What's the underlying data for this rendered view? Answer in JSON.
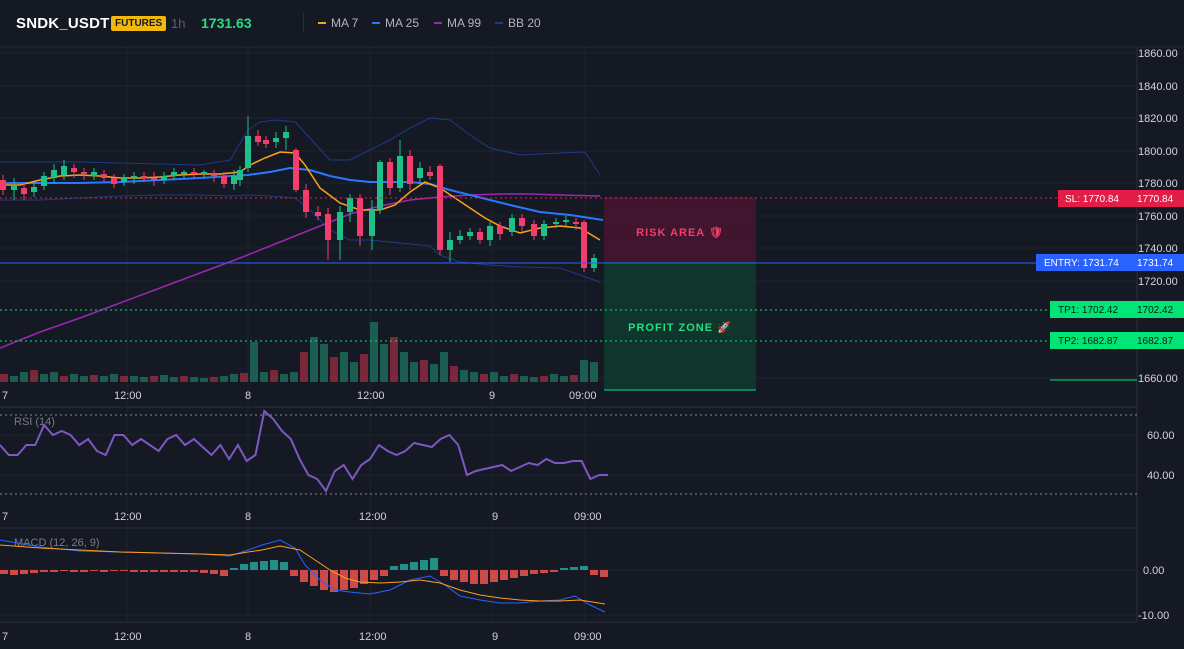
{
  "header": {
    "symbol": "SNDK_USDT",
    "badge": "FUTURES",
    "timeframe": "1h",
    "last_price": "1731.63",
    "legend": [
      {
        "label": "MA 7",
        "color": "#ff9f1a"
      },
      {
        "label": "MA 25",
        "color": "#2979ff"
      },
      {
        "label": "MA 99",
        "color": "#9c27b0"
      },
      {
        "label": "BB 20",
        "color": "#1e3a8a"
      }
    ]
  },
  "colors": {
    "up": "#1fbf8a",
    "down": "#f23d6d",
    "grid": "#1f2330",
    "axis_text": "#d1d4dc",
    "sl": "#e11d48",
    "entry": "#2962ff",
    "tp": "#00e676",
    "risk_fill": "#4a1530",
    "profit_fill": "#0e3b2e",
    "rsi": "#7e57c2",
    "macd": "#2962ff",
    "signal": "#ff9f1a"
  },
  "price_axis": {
    "ticks": [
      "1860.00",
      "1840.00",
      "1820.00",
      "1800.00",
      "1780.00",
      "1760.00",
      "1740.00",
      "1720.00",
      "1660.00"
    ],
    "range": [
      1655,
      1865
    ]
  },
  "time_axis": {
    "ticks": [
      "7",
      "12:00",
      "8",
      "12:00",
      "9",
      "09:00"
    ]
  },
  "levels": {
    "sl": {
      "label": "SL: 1770.84",
      "value": "1770.84",
      "price": 1770.84
    },
    "entry": {
      "label": "ENTRY: 1731.74",
      "value": "1731.74",
      "price": 1731.74
    },
    "tp1": {
      "label": "TP1: 1702.42",
      "value": "1702.42",
      "price": 1702.42
    },
    "tp2": {
      "label": "TP2: 1682.87",
      "value": "1682.87",
      "price": 1682.87
    }
  },
  "zones": {
    "risk_label": "RISK AREA 🛡",
    "profit_label": "PROFIT ZONE 🚀"
  },
  "rsi": {
    "title": "RSI (14)",
    "ticks": [
      "60.00",
      "40.00"
    ],
    "values": [
      55,
      50,
      50,
      55,
      55,
      65,
      60,
      62,
      60,
      55,
      58,
      52,
      50,
      60,
      60,
      55,
      58,
      55,
      52,
      58,
      60,
      55,
      58,
      54,
      50,
      55,
      48,
      55,
      47,
      50,
      72,
      68,
      62,
      58,
      48,
      40,
      38,
      32,
      42,
      45,
      38,
      45,
      48,
      55,
      52,
      50,
      52,
      56,
      55,
      54,
      58,
      60,
      55,
      40,
      42,
      43,
      44,
      45,
      42,
      44,
      46,
      45,
      48,
      46,
      46,
      47,
      47,
      38,
      40,
      40
    ]
  },
  "macd": {
    "title": "MACD (12, 26, 9)",
    "ticks": [
      "0.00",
      "-10.00"
    ]
  }
}
